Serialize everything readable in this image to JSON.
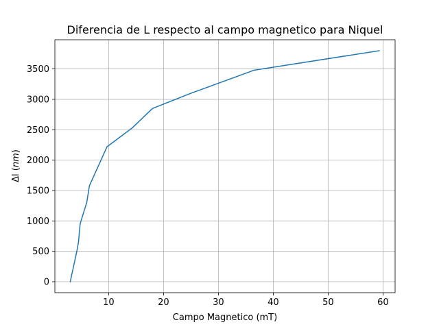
{
  "chart_data": {
    "type": "line",
    "title": "Diferencia de L respecto al campo magnetico para Niquel",
    "xlabel": "Campo Magnetico (mT)",
    "ylabel_prefix": "Δl (",
    "ylabel_unit": "nm",
    "ylabel_suffix": ")",
    "xlim": [
      0.2,
      62.2
    ],
    "ylim": [
      -180,
      3980
    ],
    "xticks": [
      10,
      20,
      30,
      40,
      50,
      60
    ],
    "yticks": [
      0,
      500,
      1000,
      1500,
      2000,
      2500,
      3000,
      3500
    ],
    "grid": true,
    "series": [
      {
        "color": "#1f77b4",
        "x": [
          3.0,
          4.2,
          4.5,
          4.8,
          5.3,
          6.0,
          6.5,
          9.7,
          14.3,
          18.0,
          25.0,
          36.5,
          59.3
        ],
        "y": [
          0,
          500,
          650,
          950,
          1100,
          1300,
          1580,
          2220,
          2530,
          2850,
          3100,
          3480,
          3800
        ]
      }
    ]
  }
}
